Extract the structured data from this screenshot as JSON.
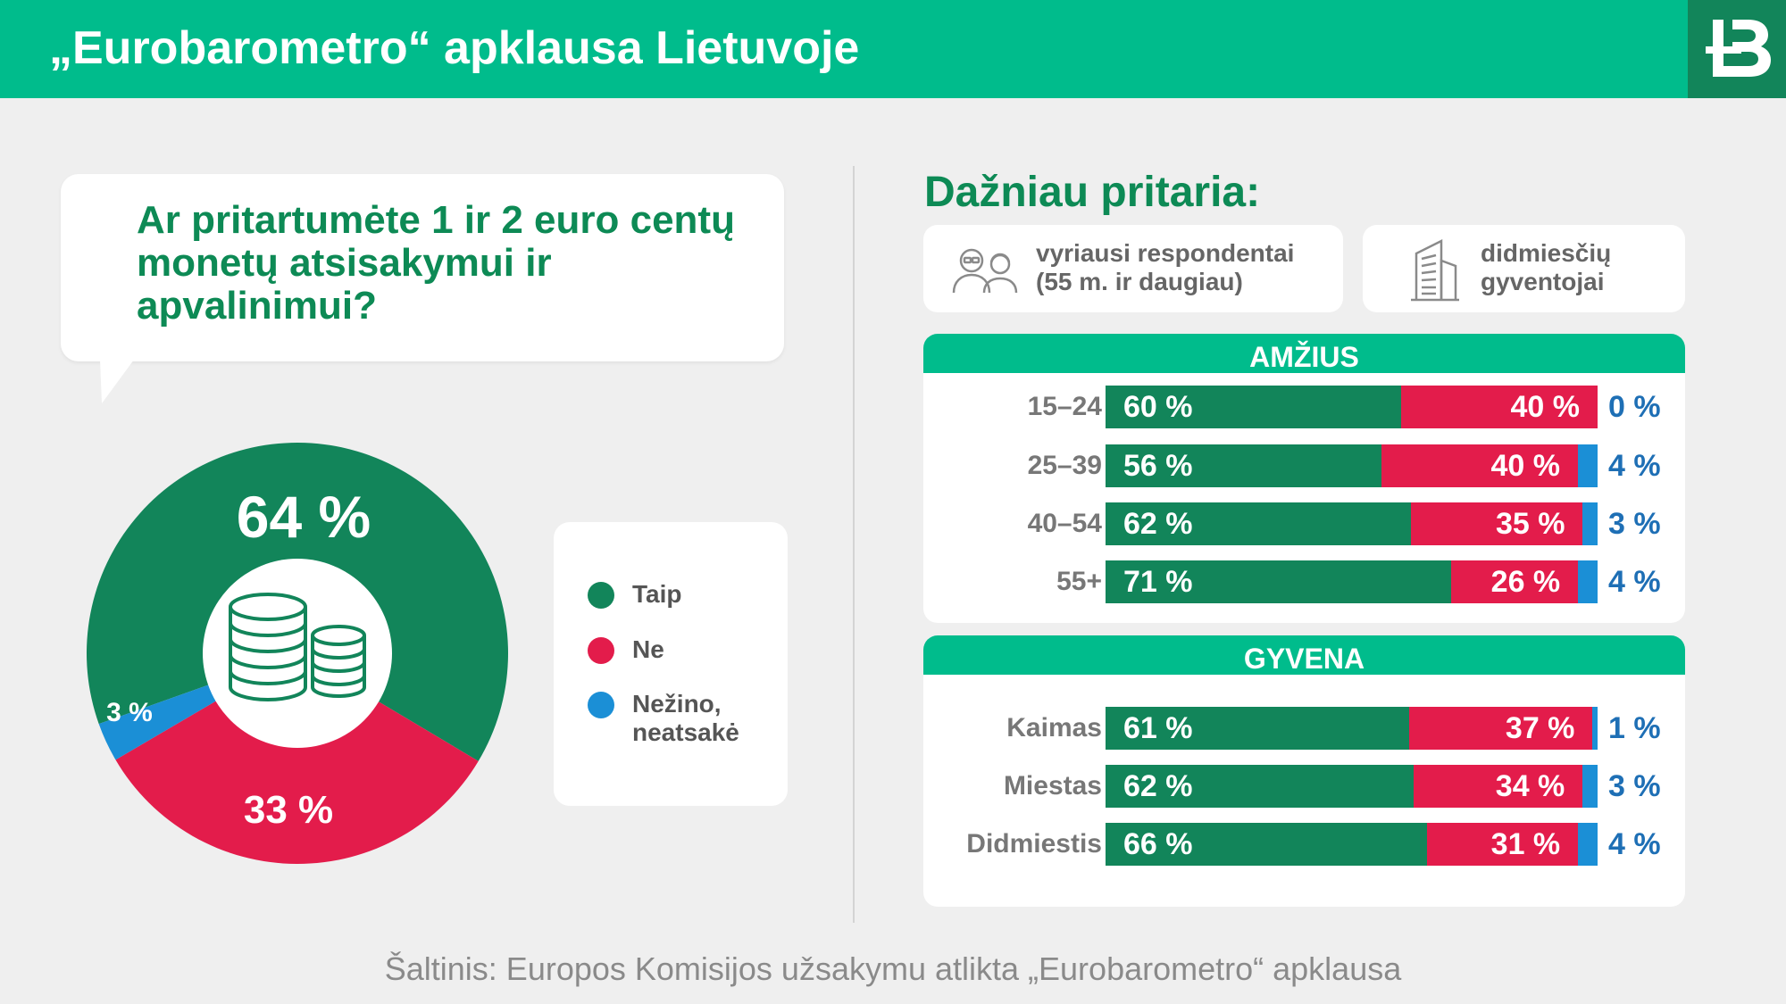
{
  "header": {
    "title": "„Eurobarometro“ apklausa Lietuvoje"
  },
  "question": "Ar pritartumėte 1 ir 2 euro centų monetų atsisakymui ir apvalinimui?",
  "colors": {
    "taip": "#12855a",
    "ne": "#e31c4b",
    "nezino": "#1b8fd6",
    "header": "#00bc8c"
  },
  "legend": [
    {
      "label": "Taip",
      "color": "#12855a"
    },
    {
      "label": "Ne",
      "color": "#e31c4b"
    },
    {
      "label": "Nežino, neatsakė",
      "color": "#1b8fd6"
    }
  ],
  "frequent": {
    "title": "Dažniau pritaria:",
    "cards": [
      {
        "icon": "elderly-couple-icon",
        "text": "vyriausi respondentai (55 m. ir daugiau)"
      },
      {
        "icon": "skyscraper-icon",
        "text": "didmiesčių gyventojai"
      }
    ]
  },
  "source": "Šaltinis: Europos Komisijos užsakymu atlikta „Eurobarometro“ apklausa",
  "chart_data": [
    {
      "type": "pie",
      "categories": [
        "Taip",
        "Ne",
        "Nežino, neatsakė"
      ],
      "values": [
        64,
        33,
        3
      ],
      "labels": [
        "64 %",
        "33 %",
        "3 %"
      ]
    },
    {
      "type": "bar",
      "stacked": true,
      "orientation": "horizontal",
      "title": "AMŽIUS",
      "categories": [
        "15–24",
        "25–39",
        "40–54",
        "55+"
      ],
      "series": [
        {
          "name": "Taip",
          "values": [
            60,
            56,
            62,
            71
          ],
          "labels": [
            "60 %",
            "56 %",
            "62 %",
            "71 %"
          ]
        },
        {
          "name": "Ne",
          "values": [
            40,
            40,
            35,
            26
          ],
          "labels": [
            "40 %",
            "40 %",
            "35 %",
            "26 %"
          ]
        },
        {
          "name": "Nežino, neatsakė",
          "values": [
            0,
            4,
            3,
            4
          ],
          "labels": [
            "0 %",
            "4 %",
            "3 %",
            "4 %"
          ]
        }
      ]
    },
    {
      "type": "bar",
      "stacked": true,
      "orientation": "horizontal",
      "title": "GYVENA",
      "categories": [
        "Kaimas",
        "Miestas",
        "Didmiestis"
      ],
      "series": [
        {
          "name": "Taip",
          "values": [
            61,
            62,
            66
          ],
          "labels": [
            "61 %",
            "62 %",
            "66 %"
          ]
        },
        {
          "name": "Ne",
          "values": [
            37,
            34,
            31
          ],
          "labels": [
            "37 %",
            "34 %",
            "31 %"
          ]
        },
        {
          "name": "Nežino, neatsakė",
          "values": [
            1,
            3,
            4
          ],
          "labels": [
            "1 %",
            "3 %",
            "4 %"
          ]
        }
      ]
    }
  ]
}
